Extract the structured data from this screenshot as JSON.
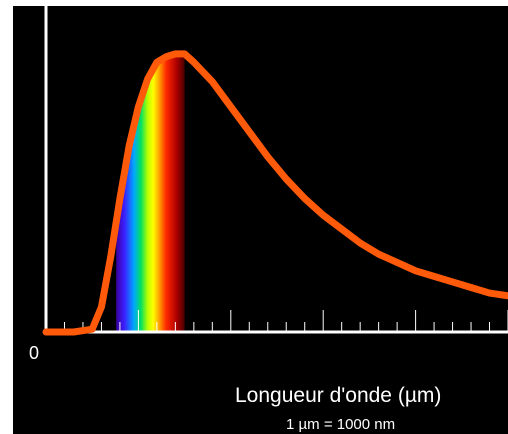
{
  "chart_data": {
    "type": "line",
    "title": "",
    "xlabel": "Longueur d'onde (µm)",
    "ylabel": "",
    "unit_note": "1 µm  =  1000 nm",
    "origin_label": "0",
    "xlim": [
      0,
      2.5
    ],
    "ylim": [
      0,
      1.05
    ],
    "grid": false,
    "legend": "none",
    "colors": {
      "background": "#000000",
      "axes": "#ffffff",
      "curve": "#ff5a0a",
      "text": "#ffffff"
    },
    "visible_spectrum_um": [
      0.38,
      0.75
    ],
    "curve_model": {
      "kind": "planck_blackbody",
      "peak_wavelength_um": 0.75,
      "peak_value": 1.0
    },
    "series": [
      {
        "x": [
          0.15,
          0.25,
          0.3,
          0.35,
          0.4,
          0.45,
          0.5,
          0.55,
          0.6,
          0.65,
          0.7,
          0.75,
          0.8,
          0.9,
          1.0,
          1.1,
          1.2,
          1.3,
          1.4,
          1.5,
          1.6,
          1.7,
          1.8,
          1.9,
          2.0,
          2.1,
          2.2,
          2.3,
          2.4,
          2.5
        ],
        "y": [
          0.0,
          0.01,
          0.09,
          0.27,
          0.48,
          0.67,
          0.81,
          0.91,
          0.97,
          0.99,
          1.0,
          1.0,
          0.97,
          0.9,
          0.81,
          0.72,
          0.63,
          0.55,
          0.48,
          0.42,
          0.37,
          0.32,
          0.28,
          0.25,
          0.22,
          0.2,
          0.18,
          0.16,
          0.14,
          0.13
        ]
      }
    ],
    "ticks": {
      "major_every_um": 0.5,
      "minor_every_um": 0.1,
      "max_um": 2.5
    }
  }
}
